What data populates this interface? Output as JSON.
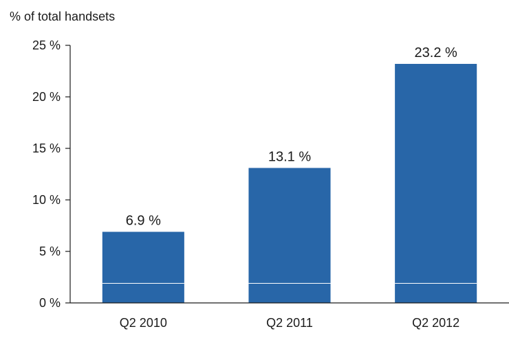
{
  "chart_data": {
    "type": "bar",
    "ylabel": "% of total handsets",
    "categories": [
      "Q2 2010",
      "Q2 2011",
      "Q2 2012"
    ],
    "values": [
      6.9,
      13.1,
      23.2
    ],
    "data_labels": [
      "6.9 %",
      "13.1 %",
      "23.2 %"
    ],
    "y_ticks": [
      0,
      5,
      10,
      15,
      20,
      25
    ],
    "y_tick_labels": [
      "0 %",
      "5 %",
      "10 %",
      "15 %",
      "20 %",
      "25 %"
    ],
    "ylim": [
      0,
      25
    ],
    "grid": false,
    "bar_color": "#2866a8",
    "bar_inner_line_value": 1.9,
    "bar_inner_line_color": "#ffffff"
  }
}
